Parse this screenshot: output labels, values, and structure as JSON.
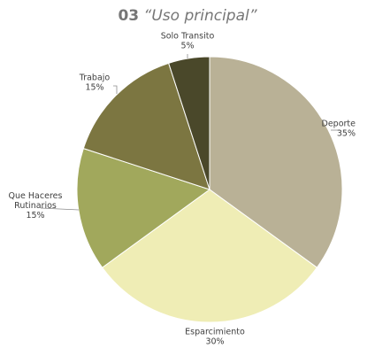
{
  "chart_data": {
    "type": "pie",
    "title_number": "03",
    "title_text": "“Uso principal”",
    "slices": [
      {
        "label": "Deporte",
        "value": 35,
        "value_label": "35%",
        "color": "#b9b196"
      },
      {
        "label": "Esparcimiento",
        "value": 30,
        "value_label": "30%",
        "color": "#efedb5"
      },
      {
        "label": "Que Haceres Rutinarios",
        "label_lines": [
          "Que Haceres",
          "Rutinarios"
        ],
        "value": 15,
        "value_label": "15%",
        "color": "#a1a85c"
      },
      {
        "label": "Trabajo",
        "value": 15,
        "value_label": "15%",
        "color": "#7c7641"
      },
      {
        "label": "Solo Transito",
        "value": 5,
        "value_label": "5%",
        "color": "#4a482a"
      }
    ]
  }
}
